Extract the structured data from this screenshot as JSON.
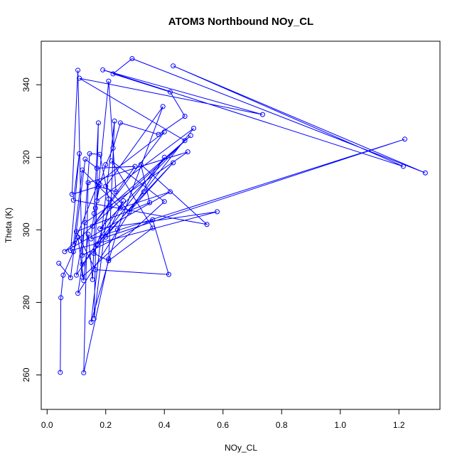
{
  "chart_data": {
    "type": "line",
    "title": "ATOM3 Northbound NOy_CL",
    "xlabel": "NOy_CL",
    "ylabel": "Theta (K)",
    "xlim": [
      -0.02,
      1.34
    ],
    "ylim": [
      250.5,
      352
    ],
    "x_ticks": [
      0.0,
      0.2,
      0.4,
      0.6,
      0.8,
      1.0,
      1.2
    ],
    "x_tick_labels": [
      "0.0",
      "0.2",
      "0.4",
      "0.6",
      "0.8",
      "1.0",
      "1.2"
    ],
    "y_ticks": [
      260,
      280,
      300,
      320,
      340
    ],
    "y_tick_labels": [
      "260",
      "280",
      "300",
      "320",
      "340"
    ],
    "grid": false,
    "legend": "none",
    "markers": "open-circle",
    "color": "#0000ff",
    "series": [
      {
        "points": [
          [
            0.045,
            260.7
          ],
          [
            0.047,
            281.3
          ],
          [
            0.055,
            287.5
          ],
          [
            0.09,
            294.0
          ],
          [
            0.105,
            298.0
          ],
          [
            0.125,
            286.0
          ],
          [
            0.14,
            298.8
          ],
          [
            0.155,
            286.3
          ],
          [
            0.165,
            306.0
          ],
          [
            0.18,
            312.5
          ],
          [
            0.2,
            318.0
          ],
          [
            0.225,
            322.5
          ],
          [
            0.25,
            329.5
          ],
          [
            0.38,
            326.3
          ],
          [
            0.47,
            331.3
          ],
          [
            0.42,
            338.0
          ],
          [
            0.225,
            343.0
          ],
          [
            0.29,
            347.2
          ],
          [
            1.29,
            315.7
          ],
          [
            0.43,
            345.2
          ],
          [
            1.215,
            317.5
          ],
          [
            0.19,
            344.1
          ],
          [
            0.735,
            331.8
          ],
          [
            0.11,
            341.8
          ],
          [
            0.47,
            324.6
          ],
          [
            0.18,
            300.3
          ],
          [
            0.58,
            305.0
          ],
          [
            0.08,
            294.3
          ],
          [
            0.11,
            321.0
          ],
          [
            0.09,
            308.2
          ],
          [
            0.545,
            301.5
          ],
          [
            0.32,
            318.0
          ],
          [
            0.35,
            307.5
          ],
          [
            0.1,
            299.5
          ],
          [
            0.165,
            289.0
          ],
          [
            0.415,
            287.7
          ],
          [
            0.36,
            302.8
          ],
          [
            0.12,
            293.0
          ],
          [
            0.145,
            321.0
          ],
          [
            0.18,
            320.8
          ],
          [
            0.21,
            308.5
          ],
          [
            0.16,
            275.5
          ],
          [
            0.175,
            329.5
          ],
          [
            0.16,
            304.5
          ],
          [
            0.15,
            297.5
          ],
          [
            1.22,
            325.0
          ],
          [
            0.2,
            298.0
          ],
          [
            0.26,
            308.0
          ],
          [
            0.1,
            287.5
          ],
          [
            0.13,
            302.0
          ],
          [
            0.48,
            321.5
          ],
          [
            0.14,
            313.0
          ],
          [
            0.125,
            260.6
          ],
          [
            0.21,
            292.0
          ],
          [
            0.23,
            330.0
          ],
          [
            0.15,
            274.5
          ],
          [
            0.24,
            300.0
          ],
          [
            0.395,
            334.0
          ],
          [
            0.2,
            312.0
          ],
          [
            0.28,
            305.0
          ],
          [
            0.43,
            318.5
          ],
          [
            0.17,
            296.0
          ],
          [
            0.4,
            320.0
          ],
          [
            0.105,
            282.5
          ],
          [
            0.12,
            290.5
          ],
          [
            0.33,
            310.5
          ],
          [
            0.5,
            328.0
          ],
          [
            0.17,
            308.0
          ],
          [
            0.21,
            341.0
          ],
          [
            0.235,
            310.5
          ],
          [
            0.175,
            312.0
          ],
          [
            0.085,
            309.8
          ],
          [
            0.105,
            344.0
          ],
          [
            0.12,
            287.0
          ],
          [
            0.4,
            307.8
          ],
          [
            0.22,
            319.0
          ],
          [
            0.36,
            300.5
          ],
          [
            0.21,
            291.5
          ],
          [
            0.16,
            293.5
          ],
          [
            0.215,
            306.5
          ],
          [
            0.49,
            326.0
          ],
          [
            0.06,
            294.0
          ],
          [
            0.42,
            310.5
          ],
          [
            0.25,
            306.0
          ],
          [
            0.12,
            316.5
          ],
          [
            0.09,
            296.0
          ],
          [
            0.175,
            313.0
          ],
          [
            0.4,
            327.0
          ],
          [
            0.155,
            301.0
          ],
          [
            0.3,
            317.5
          ],
          [
            0.17,
            317.0
          ],
          [
            0.13,
            319.5
          ],
          [
            0.08,
            286.8
          ],
          [
            0.04,
            290.8
          ]
        ]
      }
    ]
  }
}
